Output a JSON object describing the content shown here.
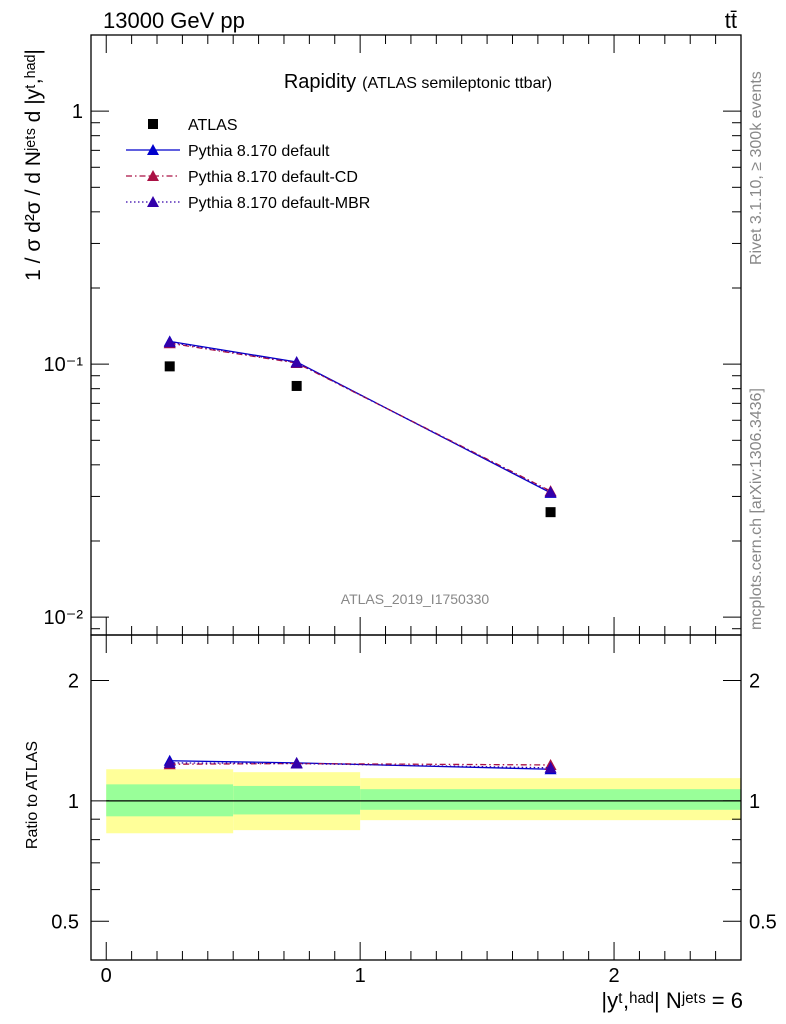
{
  "header": {
    "energy_label": "13000 GeV pp",
    "process_label": "tt̄"
  },
  "side_labels": {
    "rivet": "Rivet 3.1.10, ≥ 300k events",
    "source": "mcplots.cern.ch [arXiv:1306.3436]"
  },
  "chart_data": [
    {
      "type": "scatter",
      "panel": "main",
      "title": "Rapidity",
      "subtitle": "(ATLAS semileptonic ttbar)",
      "watermark": "ATLAS_2019_I1750330",
      "ylabel": "1 / σ d²σ / d Nʲᵉᵗˢ d |yᵗ,ʰᵃᵈ|",
      "yscale": "log",
      "ylim": [
        0.0085,
        2.0
      ],
      "xlim": [
        -0.06,
        2.5
      ],
      "yticks": [
        {
          "value": 1,
          "label": "1"
        },
        {
          "value": 0.1,
          "label": "10⁻¹"
        },
        {
          "value": 0.01,
          "label": "10⁻²"
        }
      ],
      "x": [
        0.25,
        0.75,
        1.75
      ],
      "series": [
        {
          "name": "ATLAS",
          "marker": "square",
          "color": "#000000",
          "line": "none",
          "values": [
            0.098,
            0.082,
            0.026
          ]
        },
        {
          "name": "Pythia 8.170 default",
          "marker": "triangle",
          "color": "#0000cc",
          "line": "solid",
          "values": [
            0.123,
            0.102,
            0.031
          ]
        },
        {
          "name": "Pythia 8.170 default-CD",
          "marker": "triangle",
          "color": "#aa1144",
          "line": "dashdot",
          "values": [
            0.121,
            0.101,
            0.0315
          ]
        },
        {
          "name": "Pythia 8.170 default-MBR",
          "marker": "triangle",
          "color": "#3300aa",
          "line": "dotted",
          "values": [
            0.122,
            0.1015,
            0.0312
          ]
        }
      ],
      "legend_position": "top-left"
    },
    {
      "type": "line",
      "panel": "ratio",
      "ylabel": "Ratio to ATLAS",
      "xlabel": "|yᵗ,ʰᵃᵈ| Nʲᵉᵗˢ = 6",
      "yscale": "log",
      "ylim": [
        0.4,
        2.6
      ],
      "xlim": [
        -0.06,
        2.5
      ],
      "yticks": [
        {
          "value": 2,
          "label": "2"
        },
        {
          "value": 1,
          "label": "1"
        },
        {
          "value": 0.5,
          "label": "0.5"
        }
      ],
      "xticks": [
        {
          "value": 0,
          "label": "0"
        },
        {
          "value": 1,
          "label": "1"
        },
        {
          "value": 2,
          "label": "2"
        }
      ],
      "bands": [
        {
          "x0": 0.0,
          "x1": 0.5,
          "yellow": [
            0.83,
            1.2
          ],
          "green": [
            0.915,
            1.1
          ]
        },
        {
          "x0": 0.5,
          "x1": 1.0,
          "yellow": [
            0.845,
            1.18
          ],
          "green": [
            0.925,
            1.09
          ]
        },
        {
          "x0": 1.0,
          "x1": 2.5,
          "yellow": [
            0.895,
            1.14
          ],
          "green": [
            0.95,
            1.07
          ]
        }
      ],
      "x": [
        0.25,
        0.75,
        1.75
      ],
      "series": [
        {
          "name": "Pythia 8.170 default",
          "color": "#0000cc",
          "line": "solid",
          "values": [
            1.26,
            1.245,
            1.2
          ]
        },
        {
          "name": "Pythia 8.170 default-CD",
          "color": "#aa1144",
          "line": "dashdot",
          "values": [
            1.235,
            1.24,
            1.23
          ]
        },
        {
          "name": "Pythia 8.170 default-MBR",
          "color": "#3300aa",
          "line": "dotted",
          "values": [
            1.245,
            1.24,
            1.21
          ]
        }
      ]
    }
  ]
}
